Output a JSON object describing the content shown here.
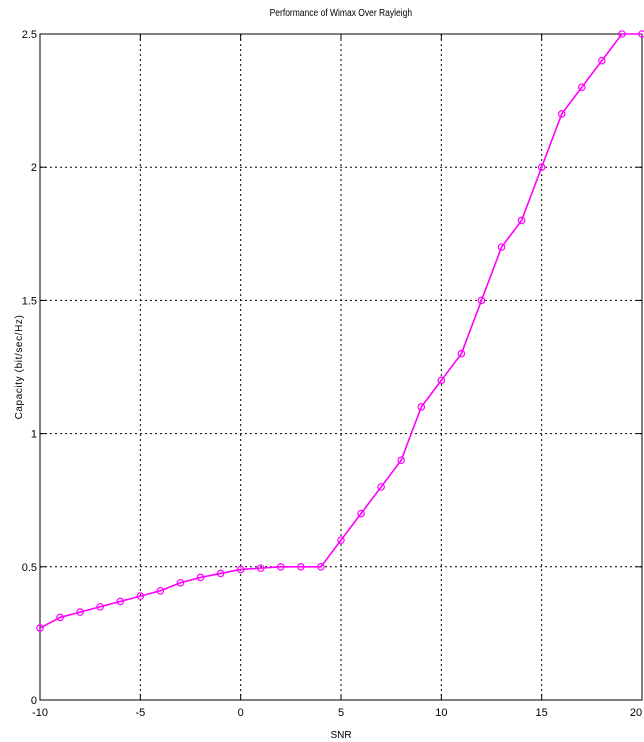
{
  "chart_data": {
    "type": "line",
    "title": "Performance of Wimax Over Rayleigh",
    "xlabel": "SNR",
    "ylabel": "Capacity (bit/sec/Hz)",
    "xlim": [
      -10,
      20
    ],
    "ylim": [
      0,
      2.5
    ],
    "grid": true,
    "xticks": [
      -10,
      -5,
      0,
      5,
      10,
      15,
      20
    ],
    "yticks": [
      0,
      0.5,
      1,
      1.5,
      2,
      2.5
    ],
    "xtick_labels": [
      "-10",
      "-5",
      "0",
      "5",
      "10",
      "15",
      "20"
    ],
    "ytick_labels": [
      "0",
      "0.5",
      "1",
      "1.5",
      "2",
      "2.5"
    ],
    "series": [
      {
        "color": "#ff00ff",
        "marker": "circle",
        "x": [
          -10,
          -9,
          -8,
          -7,
          -6,
          -5,
          -4,
          -3,
          -2,
          -1,
          0,
          1,
          2,
          3,
          4,
          5,
          6,
          7,
          8,
          9,
          10,
          11,
          12,
          13,
          14,
          15,
          16,
          17,
          18,
          19,
          20
        ],
        "y": [
          0.27,
          0.31,
          0.33,
          0.35,
          0.37,
          0.39,
          0.41,
          0.44,
          0.46,
          0.475,
          0.49,
          0.495,
          0.5,
          0.5,
          0.5,
          0.6,
          0.7,
          0.8,
          0.9,
          1.1,
          1.2,
          1.3,
          1.5,
          1.7,
          1.8,
          2.0,
          2.2,
          2.3,
          2.4,
          2.5,
          2.5
        ]
      }
    ]
  }
}
